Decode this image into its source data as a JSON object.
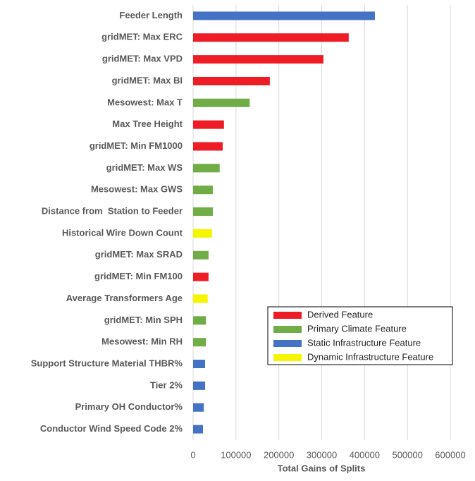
{
  "chart_data": {
    "type": "bar",
    "orientation": "horizontal",
    "x_label": "Total Gains of Splits",
    "categories": [
      "Feeder Length",
      "gridMET: Max ERC",
      "gridMET: Max VPD",
      "gridMET: Max BI",
      "Mesowest: Max T",
      "Max Tree Height",
      "gridMET: Min FM1000",
      "gridMET: Max WS",
      "Mesowest: Max GWS",
      "Distance from  Station to Feeder",
      "Historical Wire Down Count",
      "gridMET: Max SRAD",
      "gridMET: Min FM100",
      "Average Transformers Age",
      "gridMET: Min SPH",
      "Mesowest: Min RH",
      "Support Structure Material THBR%",
      "Tier 2%",
      "Primary OH Conductor%",
      "Conductor Wind Speed Code 2%"
    ],
    "series": [
      {
        "name": "Derived Feature",
        "color": "#ee1c25",
        "values": [
          null,
          363000,
          304000,
          179000,
          null,
          72000,
          69000,
          null,
          null,
          null,
          null,
          null,
          36000,
          null,
          null,
          null,
          null,
          null,
          null,
          null
        ]
      },
      {
        "name": "Primary Climate Feature",
        "color": "#70ad47",
        "values": [
          null,
          null,
          null,
          null,
          132000,
          null,
          null,
          62000,
          46000,
          46000,
          null,
          36000,
          null,
          null,
          30000,
          30000,
          null,
          null,
          null,
          null
        ]
      },
      {
        "name": "Static Infrastructure Feature",
        "color": "#4472c4",
        "values": [
          424000,
          null,
          null,
          null,
          null,
          null,
          null,
          null,
          null,
          null,
          null,
          null,
          null,
          null,
          null,
          null,
          28000,
          28000,
          25000,
          23000
        ]
      },
      {
        "name": "Dynamic Infrastructure Feature",
        "color": "#f5f500",
        "values": [
          null,
          null,
          null,
          null,
          null,
          null,
          null,
          null,
          null,
          null,
          44000,
          null,
          null,
          34000,
          null,
          null,
          null,
          null,
          null,
          null
        ]
      }
    ],
    "xlim": [
      0,
      600000
    ],
    "xticks": [
      0,
      100000,
      200000,
      300000,
      400000,
      500000,
      600000
    ],
    "grid": true,
    "legend_position": "lower right"
  }
}
